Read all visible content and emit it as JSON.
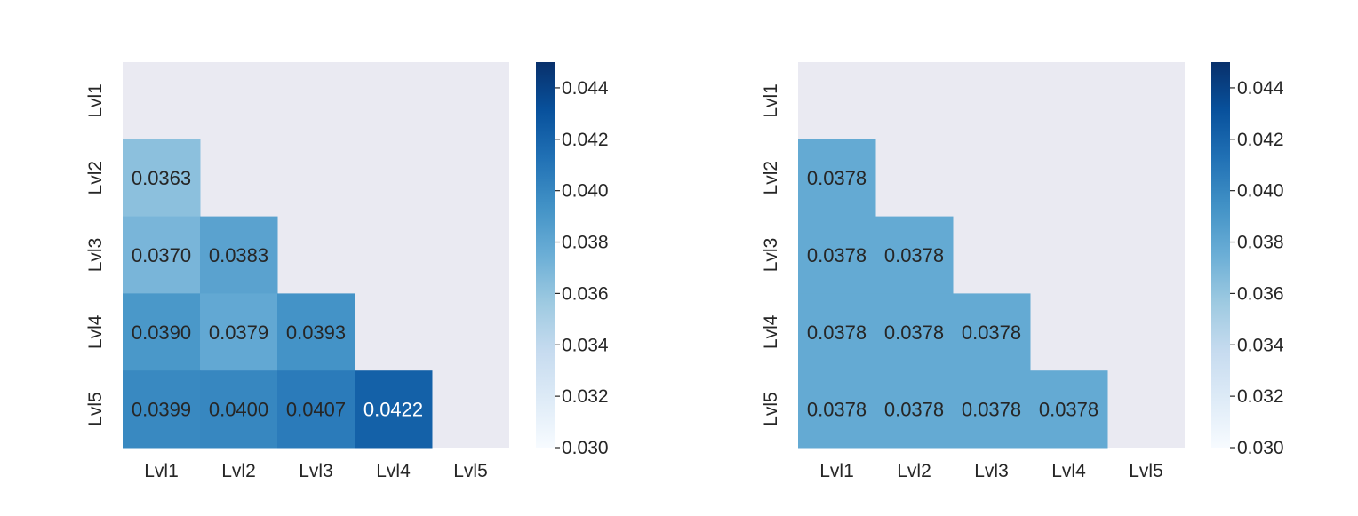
{
  "chart_data": [
    {
      "type": "heatmap",
      "mask": "upper-triangle-including-diagonal",
      "x_labels": [
        "Lvl1",
        "Lvl2",
        "Lvl3",
        "Lvl4",
        "Lvl5"
      ],
      "y_labels": [
        "Lvl1",
        "Lvl2",
        "Lvl3",
        "Lvl4",
        "Lvl5"
      ],
      "values": [
        [
          null,
          null,
          null,
          null,
          null
        ],
        [
          "0.0363",
          null,
          null,
          null,
          null
        ],
        [
          "0.0370",
          "0.0383",
          null,
          null,
          null
        ],
        [
          "0.0390",
          "0.0379",
          "0.0393",
          null,
          null
        ],
        [
          "0.0399",
          "0.0400",
          "0.0407",
          "0.0422",
          null
        ]
      ],
      "colormap": "Blues",
      "vmin": 0.03,
      "vmax": 0.045,
      "colorbar_ticks": [
        "0.030",
        "0.032",
        "0.034",
        "0.036",
        "0.038",
        "0.040",
        "0.042",
        "0.044"
      ]
    },
    {
      "type": "heatmap",
      "mask": "upper-triangle-including-diagonal",
      "x_labels": [
        "Lvl1",
        "Lvl2",
        "Lvl3",
        "Lvl4",
        "Lvl5"
      ],
      "y_labels": [
        "Lvl1",
        "Lvl2",
        "Lvl3",
        "Lvl4",
        "Lvl5"
      ],
      "values": [
        [
          null,
          null,
          null,
          null,
          null
        ],
        [
          "0.0378",
          null,
          null,
          null,
          null
        ],
        [
          "0.0378",
          "0.0378",
          null,
          null,
          null
        ],
        [
          "0.0378",
          "0.0378",
          "0.0378",
          null,
          null
        ],
        [
          "0.0378",
          "0.0378",
          "0.0378",
          "0.0378",
          null
        ]
      ],
      "colormap": "Blues",
      "vmin": 0.03,
      "vmax": 0.045,
      "colorbar_ticks": [
        "0.030",
        "0.032",
        "0.034",
        "0.036",
        "0.038",
        "0.040",
        "0.042",
        "0.044"
      ]
    }
  ],
  "colors": {
    "background": "#eaeaf2",
    "label_text": "#262626",
    "tick_line": "#262626",
    "blues": [
      "#f7fbff",
      "#deebf7",
      "#c6dbef",
      "#9ecae1",
      "#6baed6",
      "#4292c6",
      "#2171b5",
      "#08519c",
      "#08306b"
    ]
  }
}
